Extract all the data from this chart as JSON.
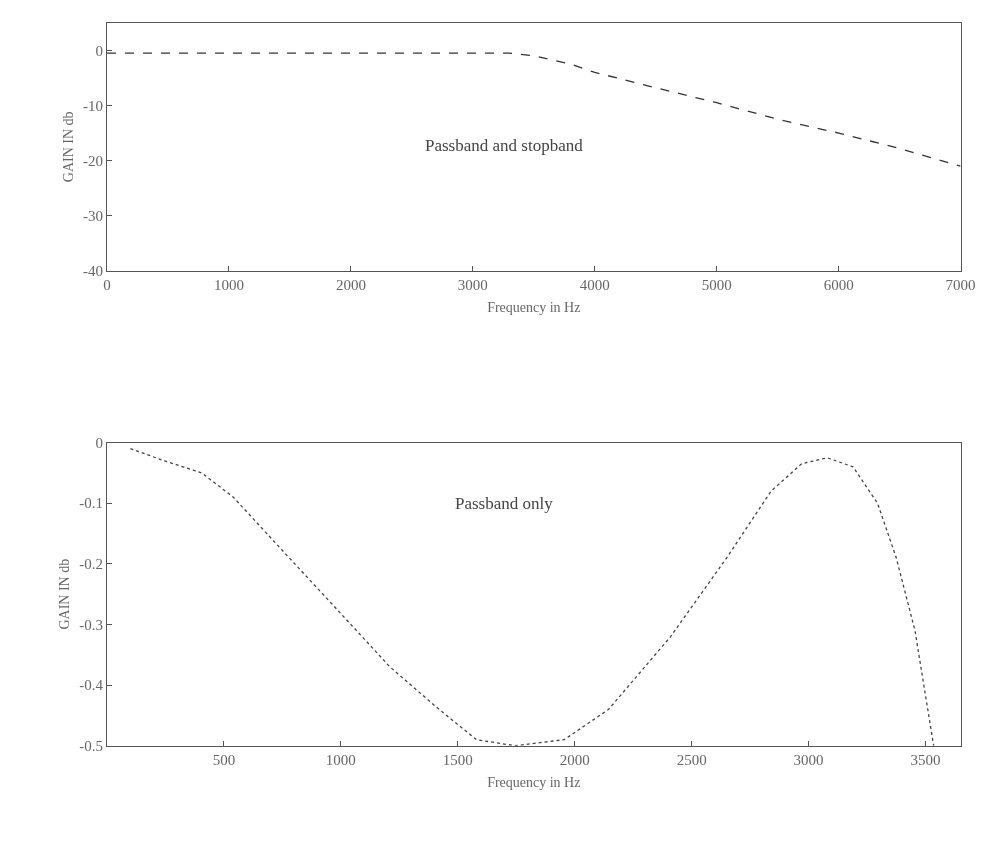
{
  "chart_data": [
    {
      "type": "line",
      "xlabel": "Frequency in Hz",
      "ylabel": "GAIN IN db",
      "annotations": [
        "Passband and stopband"
      ],
      "x": [
        0,
        1000,
        2000,
        3000,
        3300,
        3500,
        3800,
        4000,
        4500,
        5000,
        5500,
        6000,
        6500,
        7000
      ],
      "series": [
        {
          "color": "#333333",
          "values": [
            -0.5,
            -0.5,
            -0.5,
            -0.5,
            -0.5,
            -1,
            -2.5,
            -4,
            -6.8,
            -9.5,
            -12.5,
            -15,
            -17.8,
            -21
          ]
        }
      ],
      "xlim": [
        0,
        7000
      ],
      "xticks": [
        0,
        1000,
        2000,
        3000,
        4000,
        5000,
        6000,
        7000
      ],
      "ylim": [
        -40,
        5
      ],
      "yticks": [
        -40,
        -30,
        -20,
        -10,
        0
      ],
      "line_style": "dashed"
    },
    {
      "type": "line",
      "xlabel": "Frequency in Hz",
      "ylabel": "GAIN IN db",
      "annotations": [
        "Passband only"
      ],
      "x": [
        100,
        245,
        405,
        540,
        755,
        995,
        1210,
        1420,
        1580,
        1745,
        1955,
        2145,
        2410,
        2650,
        2840,
        2970,
        3080,
        3190,
        3295,
        3375,
        3455,
        3535
      ],
      "series": [
        {
          "color": "#444444",
          "values": [
            -0.01,
            -0.03,
            -0.05,
            -0.09,
            -0.18,
            -0.28,
            -0.37,
            -0.44,
            -0.49,
            -0.5,
            -0.49,
            -0.44,
            -0.32,
            -0.19,
            -0.08,
            -0.035,
            -0.025,
            -0.04,
            -0.1,
            -0.19,
            -0.31,
            -0.5
          ]
        }
      ],
      "xlim": [
        0,
        3650
      ],
      "xticks": [
        500,
        1000,
        1500,
        2000,
        2500,
        3000,
        3500
      ],
      "ylim": [
        -0.5,
        0
      ],
      "yticks": [
        -0.5,
        -0.4,
        -0.3,
        -0.2,
        -0.1,
        0
      ],
      "line_style": "dotted"
    }
  ]
}
